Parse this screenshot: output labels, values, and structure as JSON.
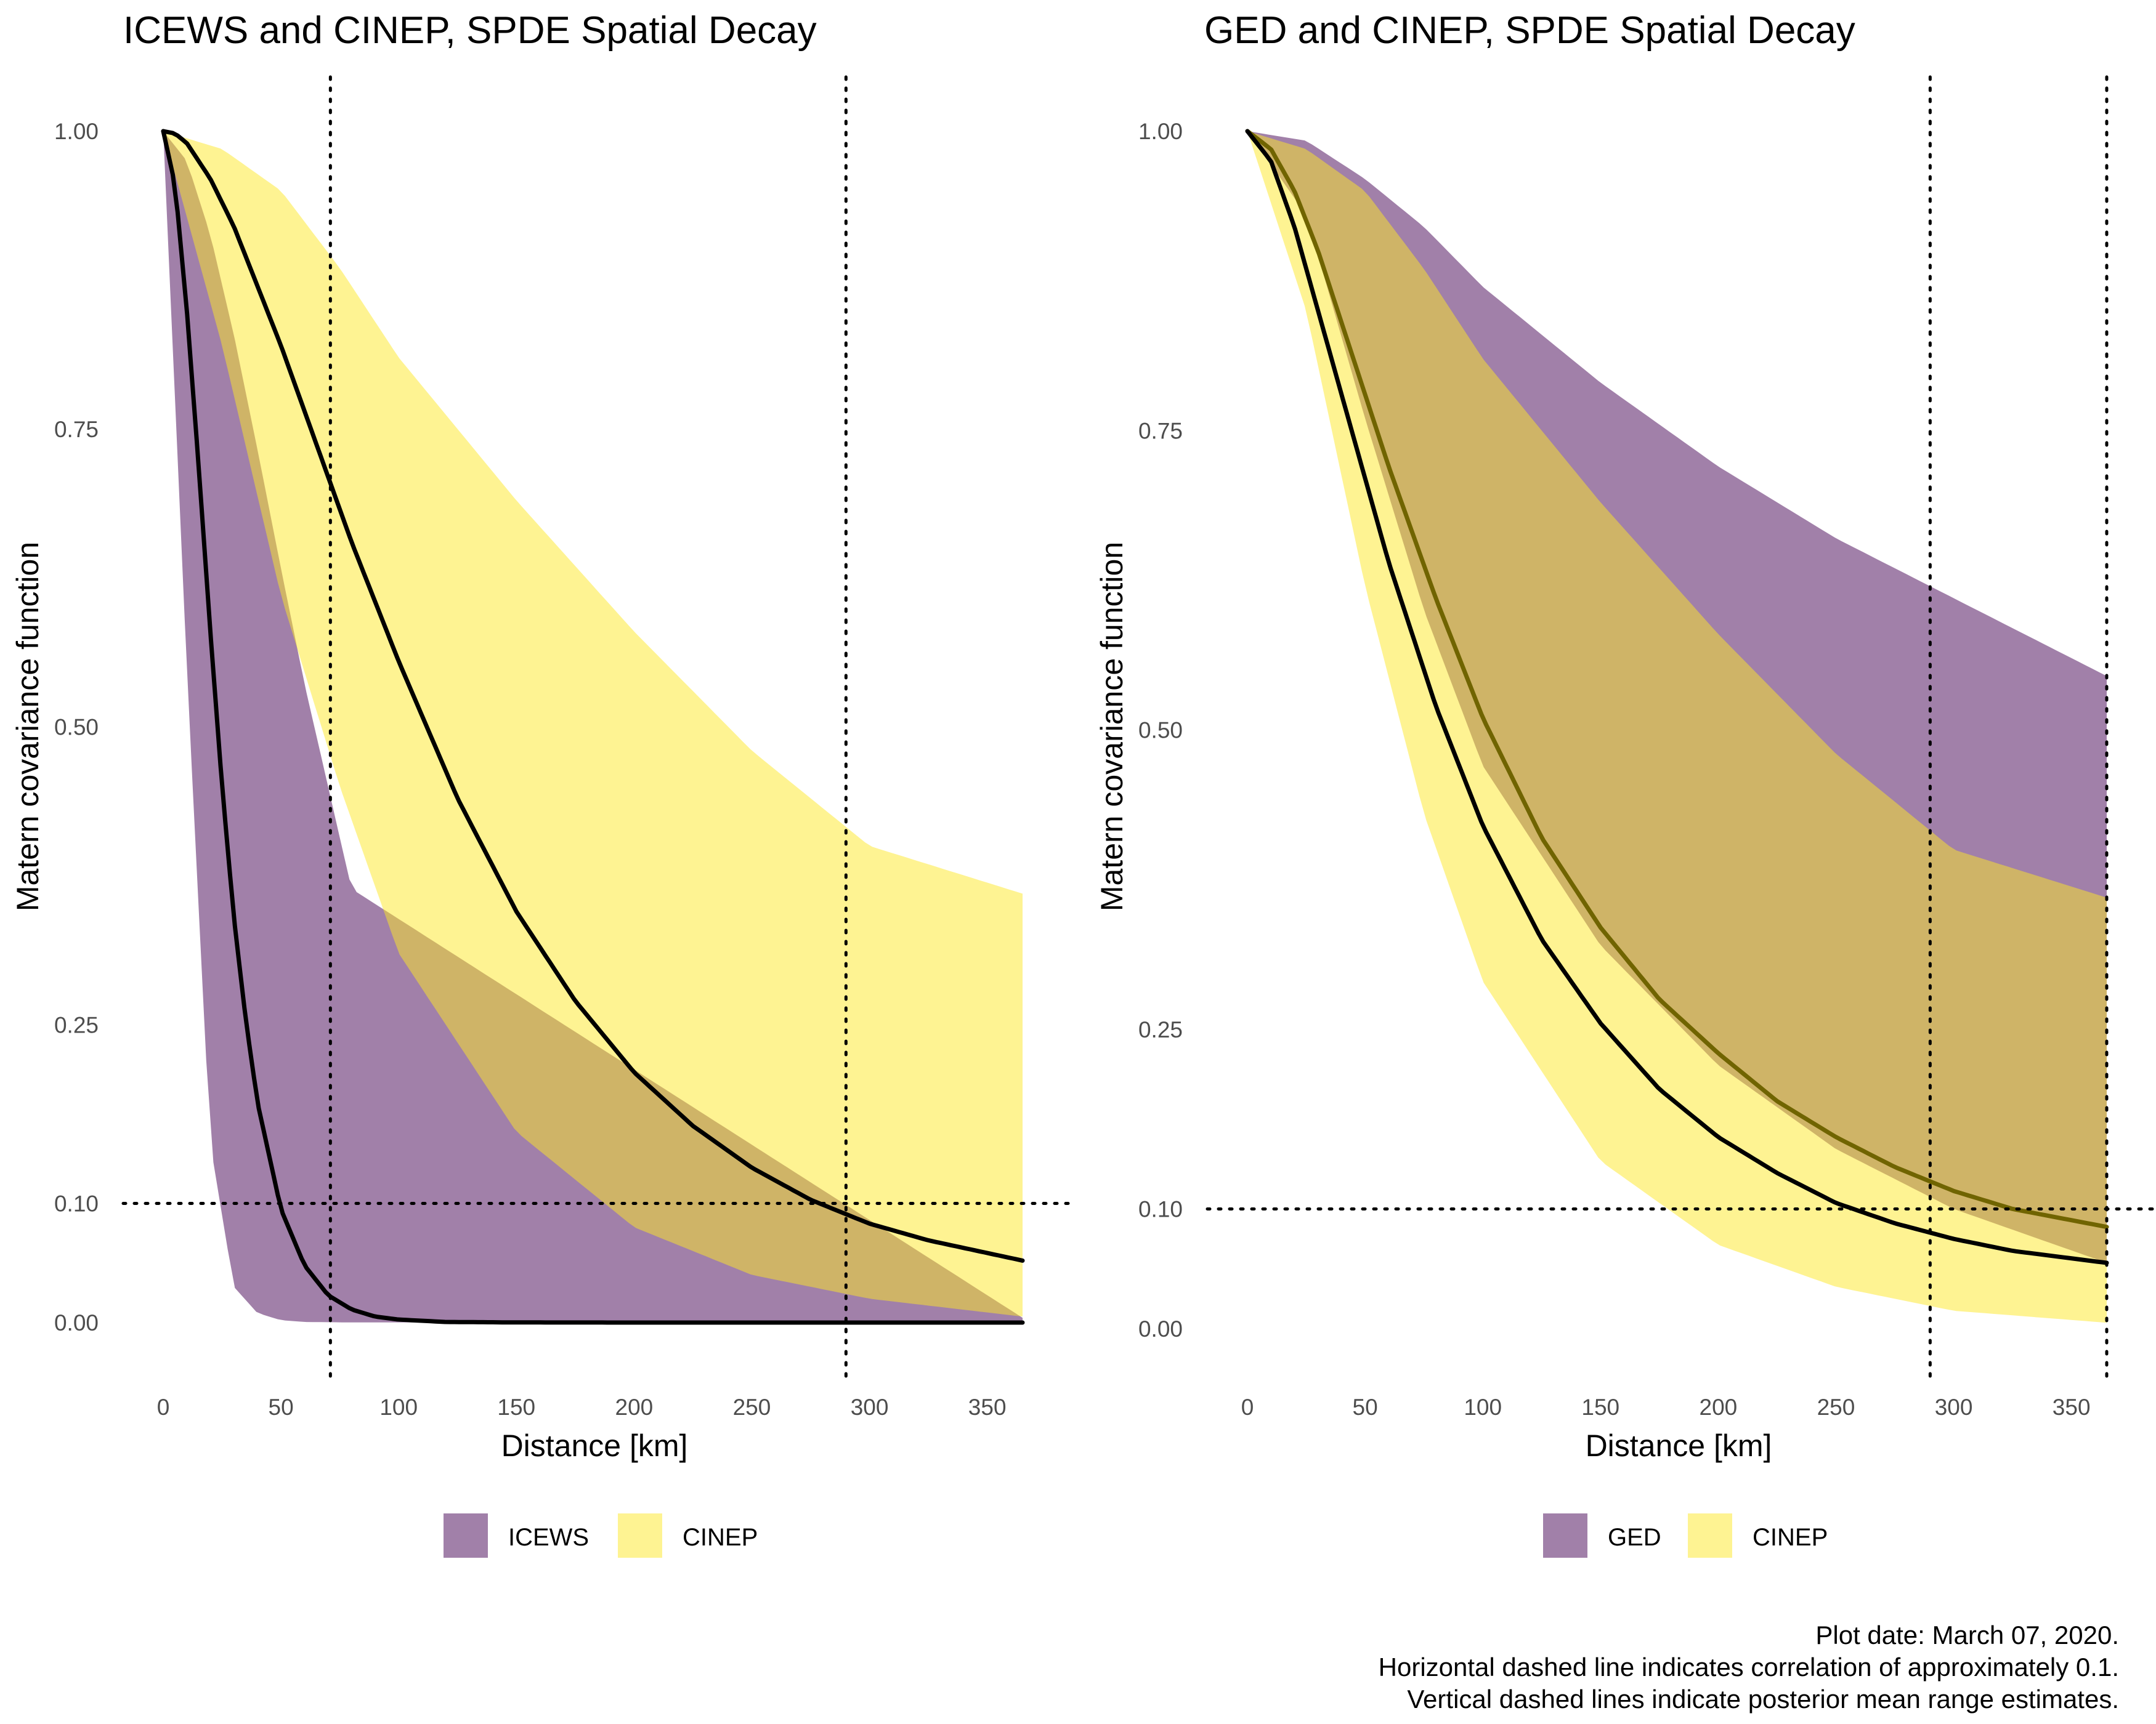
{
  "chart_data": [
    {
      "type": "area",
      "title": "ICEWS and CINEP, SPDE Spatial Decay",
      "xlabel": "Distance [km]",
      "ylabel": "Matern covariance function",
      "xlim": [
        0,
        365
      ],
      "ylim": [
        0,
        1
      ],
      "xticks": [
        0,
        50,
        100,
        150,
        200,
        250,
        300,
        350
      ],
      "yticks": [
        "0.00",
        "0.10",
        "0.25",
        "0.50",
        "0.75",
        "1.00"
      ],
      "reference_lines": {
        "horizontal": [
          0.1
        ],
        "vertical": [
          71,
          290
        ]
      },
      "legend": {
        "position": "bottom",
        "entries": [
          {
            "label": "ICEWS",
            "color": "#440154"
          },
          {
            "label": "CINEP",
            "color": "#FDE725"
          }
        ]
      },
      "series": [
        {
          "name": "ICEWS",
          "color": "#440154",
          "band_x": [
            0,
            10,
            20,
            30,
            40,
            50,
            60,
            80,
            365
          ],
          "band_lower": [
            1.0,
            0.55,
            0.15,
            0.03,
            0.008,
            0.002,
            0.0005,
            0.0001,
            0.0
          ],
          "band_upper": [
            1.0,
            0.975,
            0.913,
            0.829,
            0.733,
            0.633,
            0.536,
            0.364,
            0.004
          ],
          "mean_x": [
            0,
            5,
            10,
            15,
            20,
            25,
            30,
            35,
            40,
            50,
            60,
            70,
            80,
            90,
            100,
            120,
            150,
            200,
            365
          ],
          "mean": [
            1.0,
            0.955,
            0.85,
            0.72,
            0.58,
            0.45,
            0.34,
            0.255,
            0.185,
            0.095,
            0.048,
            0.023,
            0.011,
            0.005,
            0.0025,
            0.0005,
            0.0001,
            0.0,
            0.0
          ]
        },
        {
          "name": "CINEP",
          "color": "#FDE725",
          "band_x": [
            0,
            25,
            50,
            75,
            100,
            150,
            200,
            250,
            300,
            365
          ],
          "band_lower": [
            1.0,
            0.82,
            0.61,
            0.45,
            0.31,
            0.16,
            0.08,
            0.04,
            0.02,
            0.005
          ],
          "band_upper": [
            1.0,
            0.985,
            0.95,
            0.885,
            0.81,
            0.69,
            0.58,
            0.48,
            0.4,
            0.36
          ],
          "mean_x": [
            0,
            5,
            10,
            20,
            30,
            40,
            50,
            60,
            70,
            80,
            100,
            125,
            150,
            175,
            200,
            225,
            250,
            275,
            300,
            325,
            365
          ],
          "mean": [
            1.0,
            0.998,
            0.99,
            0.96,
            0.92,
            0.87,
            0.82,
            0.765,
            0.71,
            0.655,
            0.555,
            0.44,
            0.345,
            0.27,
            0.21,
            0.165,
            0.13,
            0.103,
            0.083,
            0.069,
            0.052
          ]
        }
      ]
    },
    {
      "type": "area",
      "title": "GED and CINEP, SPDE Spatial Decay",
      "xlabel": "Distance [km]",
      "ylabel": "Matern covariance function",
      "xlim": [
        0,
        365
      ],
      "ylim": [
        0,
        1
      ],
      "xticks": [
        0,
        50,
        100,
        150,
        200,
        250,
        300,
        350
      ],
      "yticks": [
        "0.00",
        "0.10",
        "0.25",
        "0.50",
        "0.75",
        "1.00"
      ],
      "reference_lines": {
        "horizontal": [
          0.1
        ],
        "vertical": [
          290,
          365
        ]
      },
      "legend": {
        "position": "bottom",
        "entries": [
          {
            "label": "GED",
            "color": "#440154"
          },
          {
            "label": "CINEP",
            "color": "#FDE725"
          }
        ]
      },
      "series": [
        {
          "name": "GED",
          "color": "#440154",
          "band_x": [
            0,
            25,
            50,
            75,
            100,
            150,
            200,
            250,
            300,
            365
          ],
          "band_lower": [
            1.0,
            0.93,
            0.76,
            0.6,
            0.47,
            0.32,
            0.22,
            0.15,
            0.1,
            0.055
          ],
          "band_upper": [
            1.0,
            0.992,
            0.96,
            0.92,
            0.87,
            0.79,
            0.72,
            0.66,
            0.61,
            0.545
          ],
          "mean_x": [
            0,
            10,
            20,
            30,
            40,
            50,
            60,
            70,
            80,
            100,
            125,
            150,
            175,
            200,
            225,
            250,
            275,
            300,
            325,
            365
          ],
          "mean": [
            1.0,
            0.985,
            0.95,
            0.9,
            0.84,
            0.78,
            0.72,
            0.665,
            0.61,
            0.51,
            0.41,
            0.335,
            0.275,
            0.23,
            0.19,
            0.16,
            0.135,
            0.115,
            0.1,
            0.085
          ]
        },
        {
          "name": "CINEP",
          "color": "#FDE725",
          "band_x": [
            0,
            25,
            50,
            75,
            100,
            150,
            200,
            250,
            300,
            365
          ],
          "band_lower": [
            1.0,
            0.85,
            0.62,
            0.43,
            0.29,
            0.14,
            0.07,
            0.035,
            0.015,
            0.005
          ],
          "band_upper": [
            1.0,
            0.985,
            0.95,
            0.885,
            0.81,
            0.69,
            0.58,
            0.48,
            0.4,
            0.36
          ],
          "mean_x": [
            0,
            10,
            20,
            30,
            40,
            50,
            60,
            70,
            80,
            100,
            125,
            150,
            175,
            200,
            225,
            250,
            275,
            300,
            325,
            365
          ],
          "mean": [
            1.0,
            0.975,
            0.92,
            0.85,
            0.78,
            0.71,
            0.64,
            0.58,
            0.52,
            0.42,
            0.325,
            0.255,
            0.2,
            0.16,
            0.13,
            0.105,
            0.088,
            0.075,
            0.065,
            0.055
          ]
        }
      ]
    }
  ],
  "caption": [
    "Plot date: March 07, 2020.",
    "Horizontal dashed line indicates correlation of approximately 0.1.",
    "Vertical dashed lines indicate posterior mean range estimates."
  ]
}
